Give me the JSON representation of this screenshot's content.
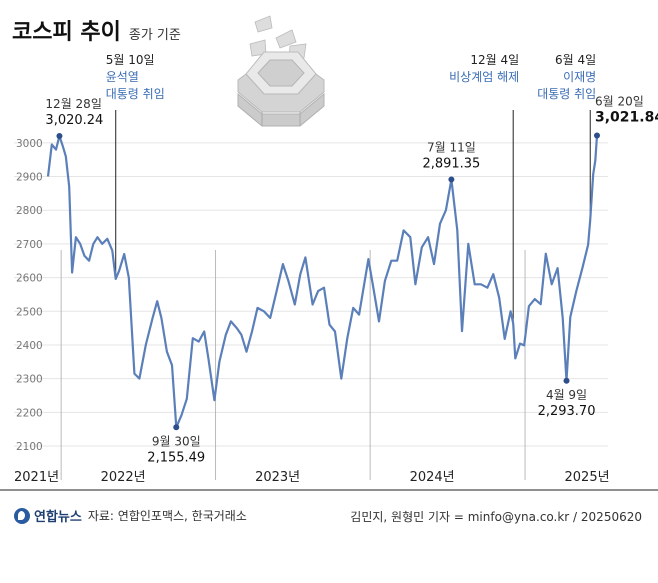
{
  "header": {
    "title": "코스피 추이",
    "subtitle": "종가 기준"
  },
  "footer": {
    "logo_text": "연합뉴스",
    "source": "자료: 연합인포맥스, 한국거래소",
    "credit": "김민지, 원형민 기자 = minfo@yna.co.kr / 20250620"
  },
  "colors": {
    "line": "#5b7fb9",
    "point": "#2c4e8a",
    "annotation_blue": "#3a6db5",
    "grid": "#e5e5e5",
    "axis_text": "#777777"
  },
  "chart_data": {
    "type": "line",
    "title": "코스피 추이",
    "subtitle": "종가 기준",
    "x_range": [
      "2021-12-01",
      "2025-06-20"
    ],
    "ylim": [
      2100,
      3050
    ],
    "y_ticks": [
      2100,
      2200,
      2300,
      2400,
      2500,
      2600,
      2700,
      2800,
      2900,
      3000
    ],
    "year_labels": [
      {
        "label": "2021년",
        "date": "2021-12-01"
      },
      {
        "label": "2022년",
        "date": "2022-01-01"
      },
      {
        "label": "2023년",
        "date": "2023-01-01"
      },
      {
        "label": "2024년",
        "date": "2024-01-01"
      },
      {
        "label": "2025년",
        "date": "2025-01-01"
      }
    ],
    "series": [
      {
        "values": [
          [
            "2021-12-01",
            2900
          ],
          [
            "2021-12-10",
            2995
          ],
          [
            "2021-12-20",
            2980
          ],
          [
            "2021-12-28",
            3020.24
          ],
          [
            "2022-01-05",
            2990
          ],
          [
            "2022-01-12",
            2960
          ],
          [
            "2022-01-20",
            2870
          ],
          [
            "2022-01-27",
            2615
          ],
          [
            "2022-02-05",
            2720
          ],
          [
            "2022-02-15",
            2700
          ],
          [
            "2022-02-25",
            2665
          ],
          [
            "2022-03-08",
            2650
          ],
          [
            "2022-03-18",
            2700
          ],
          [
            "2022-03-28",
            2720
          ],
          [
            "2022-04-08",
            2700
          ],
          [
            "2022-04-20",
            2715
          ],
          [
            "2022-05-02",
            2680
          ],
          [
            "2022-05-10",
            2596
          ],
          [
            "2022-05-18",
            2620
          ],
          [
            "2022-05-30",
            2670
          ],
          [
            "2022-06-10",
            2600
          ],
          [
            "2022-06-23",
            2315
          ],
          [
            "2022-07-05",
            2300
          ],
          [
            "2022-07-20",
            2400
          ],
          [
            "2022-08-05",
            2480
          ],
          [
            "2022-08-16",
            2530
          ],
          [
            "2022-08-26",
            2480
          ],
          [
            "2022-09-08",
            2380
          ],
          [
            "2022-09-20",
            2340
          ],
          [
            "2022-09-30",
            2155.49
          ],
          [
            "2022-10-12",
            2190
          ],
          [
            "2022-10-25",
            2240
          ],
          [
            "2022-11-08",
            2420
          ],
          [
            "2022-11-22",
            2410
          ],
          [
            "2022-12-05",
            2440
          ],
          [
            "2022-12-15",
            2360
          ],
          [
            "2022-12-29",
            2236
          ],
          [
            "2023-01-10",
            2350
          ],
          [
            "2023-01-25",
            2430
          ],
          [
            "2023-02-06",
            2470
          ],
          [
            "2023-02-20",
            2450
          ],
          [
            "2023-03-03",
            2430
          ],
          [
            "2023-03-15",
            2380
          ],
          [
            "2023-03-28",
            2440
          ],
          [
            "2023-04-10",
            2510
          ],
          [
            "2023-04-25",
            2500
          ],
          [
            "2023-05-10",
            2480
          ],
          [
            "2023-05-25",
            2560
          ],
          [
            "2023-06-09",
            2640
          ],
          [
            "2023-06-22",
            2590
          ],
          [
            "2023-07-07",
            2520
          ],
          [
            "2023-07-20",
            2610
          ],
          [
            "2023-08-01",
            2660
          ],
          [
            "2023-08-18",
            2520
          ],
          [
            "2023-08-31",
            2560
          ],
          [
            "2023-09-14",
            2570
          ],
          [
            "2023-09-27",
            2460
          ],
          [
            "2023-10-10",
            2440
          ],
          [
            "2023-10-25",
            2300
          ],
          [
            "2023-11-08",
            2420
          ],
          [
            "2023-11-22",
            2510
          ],
          [
            "2023-12-06",
            2490
          ],
          [
            "2023-12-28",
            2655
          ],
          [
            "2024-01-10",
            2560
          ],
          [
            "2024-01-22",
            2470
          ],
          [
            "2024-02-05",
            2590
          ],
          [
            "2024-02-20",
            2650
          ],
          [
            "2024-03-05",
            2650
          ],
          [
            "2024-03-20",
            2740
          ],
          [
            "2024-04-05",
            2720
          ],
          [
            "2024-04-17",
            2580
          ],
          [
            "2024-05-02",
            2690
          ],
          [
            "2024-05-17",
            2720
          ],
          [
            "2024-05-31",
            2640
          ],
          [
            "2024-06-14",
            2760
          ],
          [
            "2024-06-28",
            2800
          ],
          [
            "2024-07-11",
            2891.35
          ],
          [
            "2024-07-25",
            2740
          ],
          [
            "2024-08-05",
            2441
          ],
          [
            "2024-08-20",
            2700
          ],
          [
            "2024-09-04",
            2580
          ],
          [
            "2024-09-19",
            2580
          ],
          [
            "2024-10-04",
            2570
          ],
          [
            "2024-10-18",
            2610
          ],
          [
            "2024-11-01",
            2540
          ],
          [
            "2024-11-14",
            2418
          ],
          [
            "2024-11-28",
            2500
          ],
          [
            "2024-12-04",
            2464
          ],
          [
            "2024-12-09",
            2360
          ],
          [
            "2024-12-20",
            2404
          ],
          [
            "2024-12-30",
            2399
          ],
          [
            "2025-01-10",
            2515
          ],
          [
            "2025-01-24",
            2536
          ],
          [
            "2025-02-07",
            2521
          ],
          [
            "2025-02-19",
            2671
          ],
          [
            "2025-03-05",
            2580
          ],
          [
            "2025-03-19",
            2628
          ],
          [
            "2025-03-31",
            2481
          ],
          [
            "2025-04-09",
            2293.7
          ],
          [
            "2025-04-18",
            2483
          ],
          [
            "2025-05-02",
            2560
          ],
          [
            "2025-05-16",
            2626
          ],
          [
            "2025-05-30",
            2697
          ],
          [
            "2025-06-04",
            2770
          ],
          [
            "2025-06-11",
            2907
          ],
          [
            "2025-06-16",
            2947
          ],
          [
            "2025-06-20",
            3021.84
          ]
        ]
      }
    ],
    "points": [
      {
        "date": "2021-12-28",
        "value": 3020.24,
        "date_label": "12월 28일",
        "value_label": "3,020.24"
      },
      {
        "date": "2022-09-30",
        "value": 2155.49,
        "date_label": "9월 30일",
        "value_label": "2,155.49"
      },
      {
        "date": "2024-07-11",
        "value": 2891.35,
        "date_label": "7월 11일",
        "value_label": "2,891.35"
      },
      {
        "date": "2025-04-09",
        "value": 2293.7,
        "date_label": "4월 9일",
        "value_label": "2,293.70"
      },
      {
        "date": "2025-06-20",
        "value": 3021.84,
        "date_label": "6월 20일",
        "value_label": "3,021.84"
      }
    ],
    "events": [
      {
        "date": "2022-05-10",
        "value": 2596,
        "date_label": "5월 10일",
        "text": [
          "윤석열",
          "대통령 취임"
        ]
      },
      {
        "date": "2024-12-04",
        "value": 2464,
        "date_label": "12월 4일",
        "text": [
          "비상계엄 해제"
        ]
      },
      {
        "date": "2025-06-04",
        "value": 2770,
        "date_label": "6월 4일",
        "text": [
          "이재명",
          "대통령 취임"
        ]
      }
    ]
  }
}
